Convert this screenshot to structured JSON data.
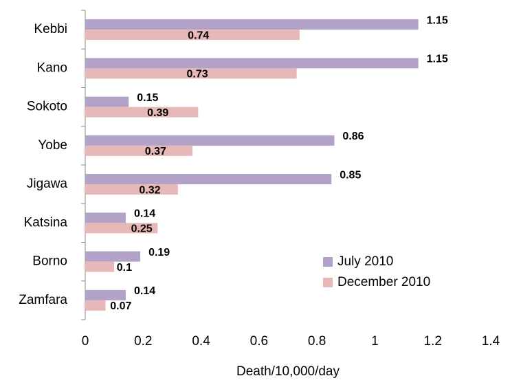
{
  "chart_data": {
    "type": "bar",
    "orientation": "horizontal",
    "categories": [
      "Kebbi",
      "Kano",
      "Sokoto",
      "Yobe",
      "Jigawa",
      "Katsina",
      "Borno",
      "Zamfara"
    ],
    "series": [
      {
        "name": "July 2010",
        "color": "#b3a2c7",
        "values": [
          1.15,
          1.15,
          0.15,
          0.86,
          0.85,
          0.14,
          0.19,
          0.14
        ]
      },
      {
        "name": "December 2010",
        "color": "#e6b9b8",
        "values": [
          0.74,
          0.73,
          0.39,
          0.37,
          0.32,
          0.25,
          0.1,
          0.07
        ]
      }
    ],
    "x_label": "Death/10,000/day",
    "xlim": [
      0,
      1.4
    ],
    "xticks": [
      0,
      0.2,
      0.4,
      0.6,
      0.8,
      1,
      1.2,
      1.4
    ],
    "grid": false,
    "legend": "lower right"
  }
}
